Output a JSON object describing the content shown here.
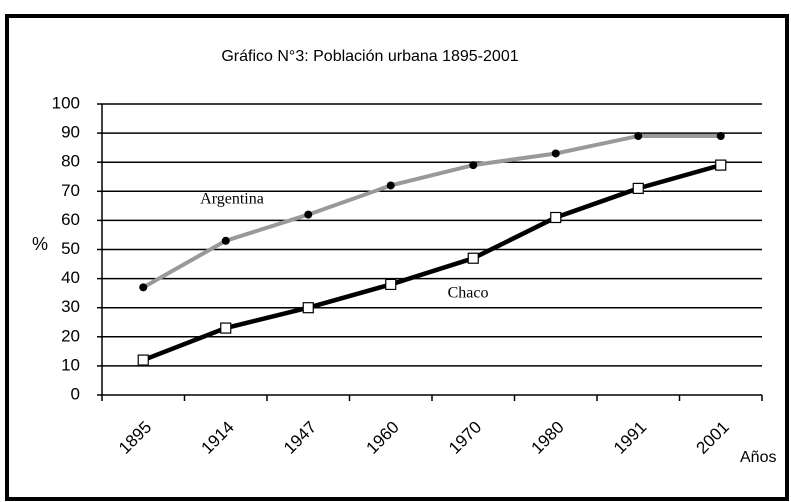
{
  "chart_data": {
    "type": "line",
    "title": "Gráfico N°3: Población urbana 1895-2001",
    "y_label": "%",
    "x_label": "Años",
    "categories": [
      "1895",
      "1914",
      "1947",
      "1960",
      "1970",
      "1980",
      "1991",
      "2001"
    ],
    "series": [
      {
        "name": "Argentina",
        "color": "#999999",
        "marker": "circle",
        "values": [
          37,
          53,
          62,
          72,
          79,
          83,
          89,
          89
        ]
      },
      {
        "name": "Chaco",
        "color": "#000000",
        "marker": "square",
        "values": [
          12,
          23,
          30,
          38,
          47,
          61,
          71,
          79
        ]
      }
    ],
    "ylim": [
      0,
      100
    ],
    "yticks": [
      0,
      10,
      20,
      30,
      40,
      50,
      60,
      70,
      80,
      90,
      100
    ],
    "grid": true
  }
}
